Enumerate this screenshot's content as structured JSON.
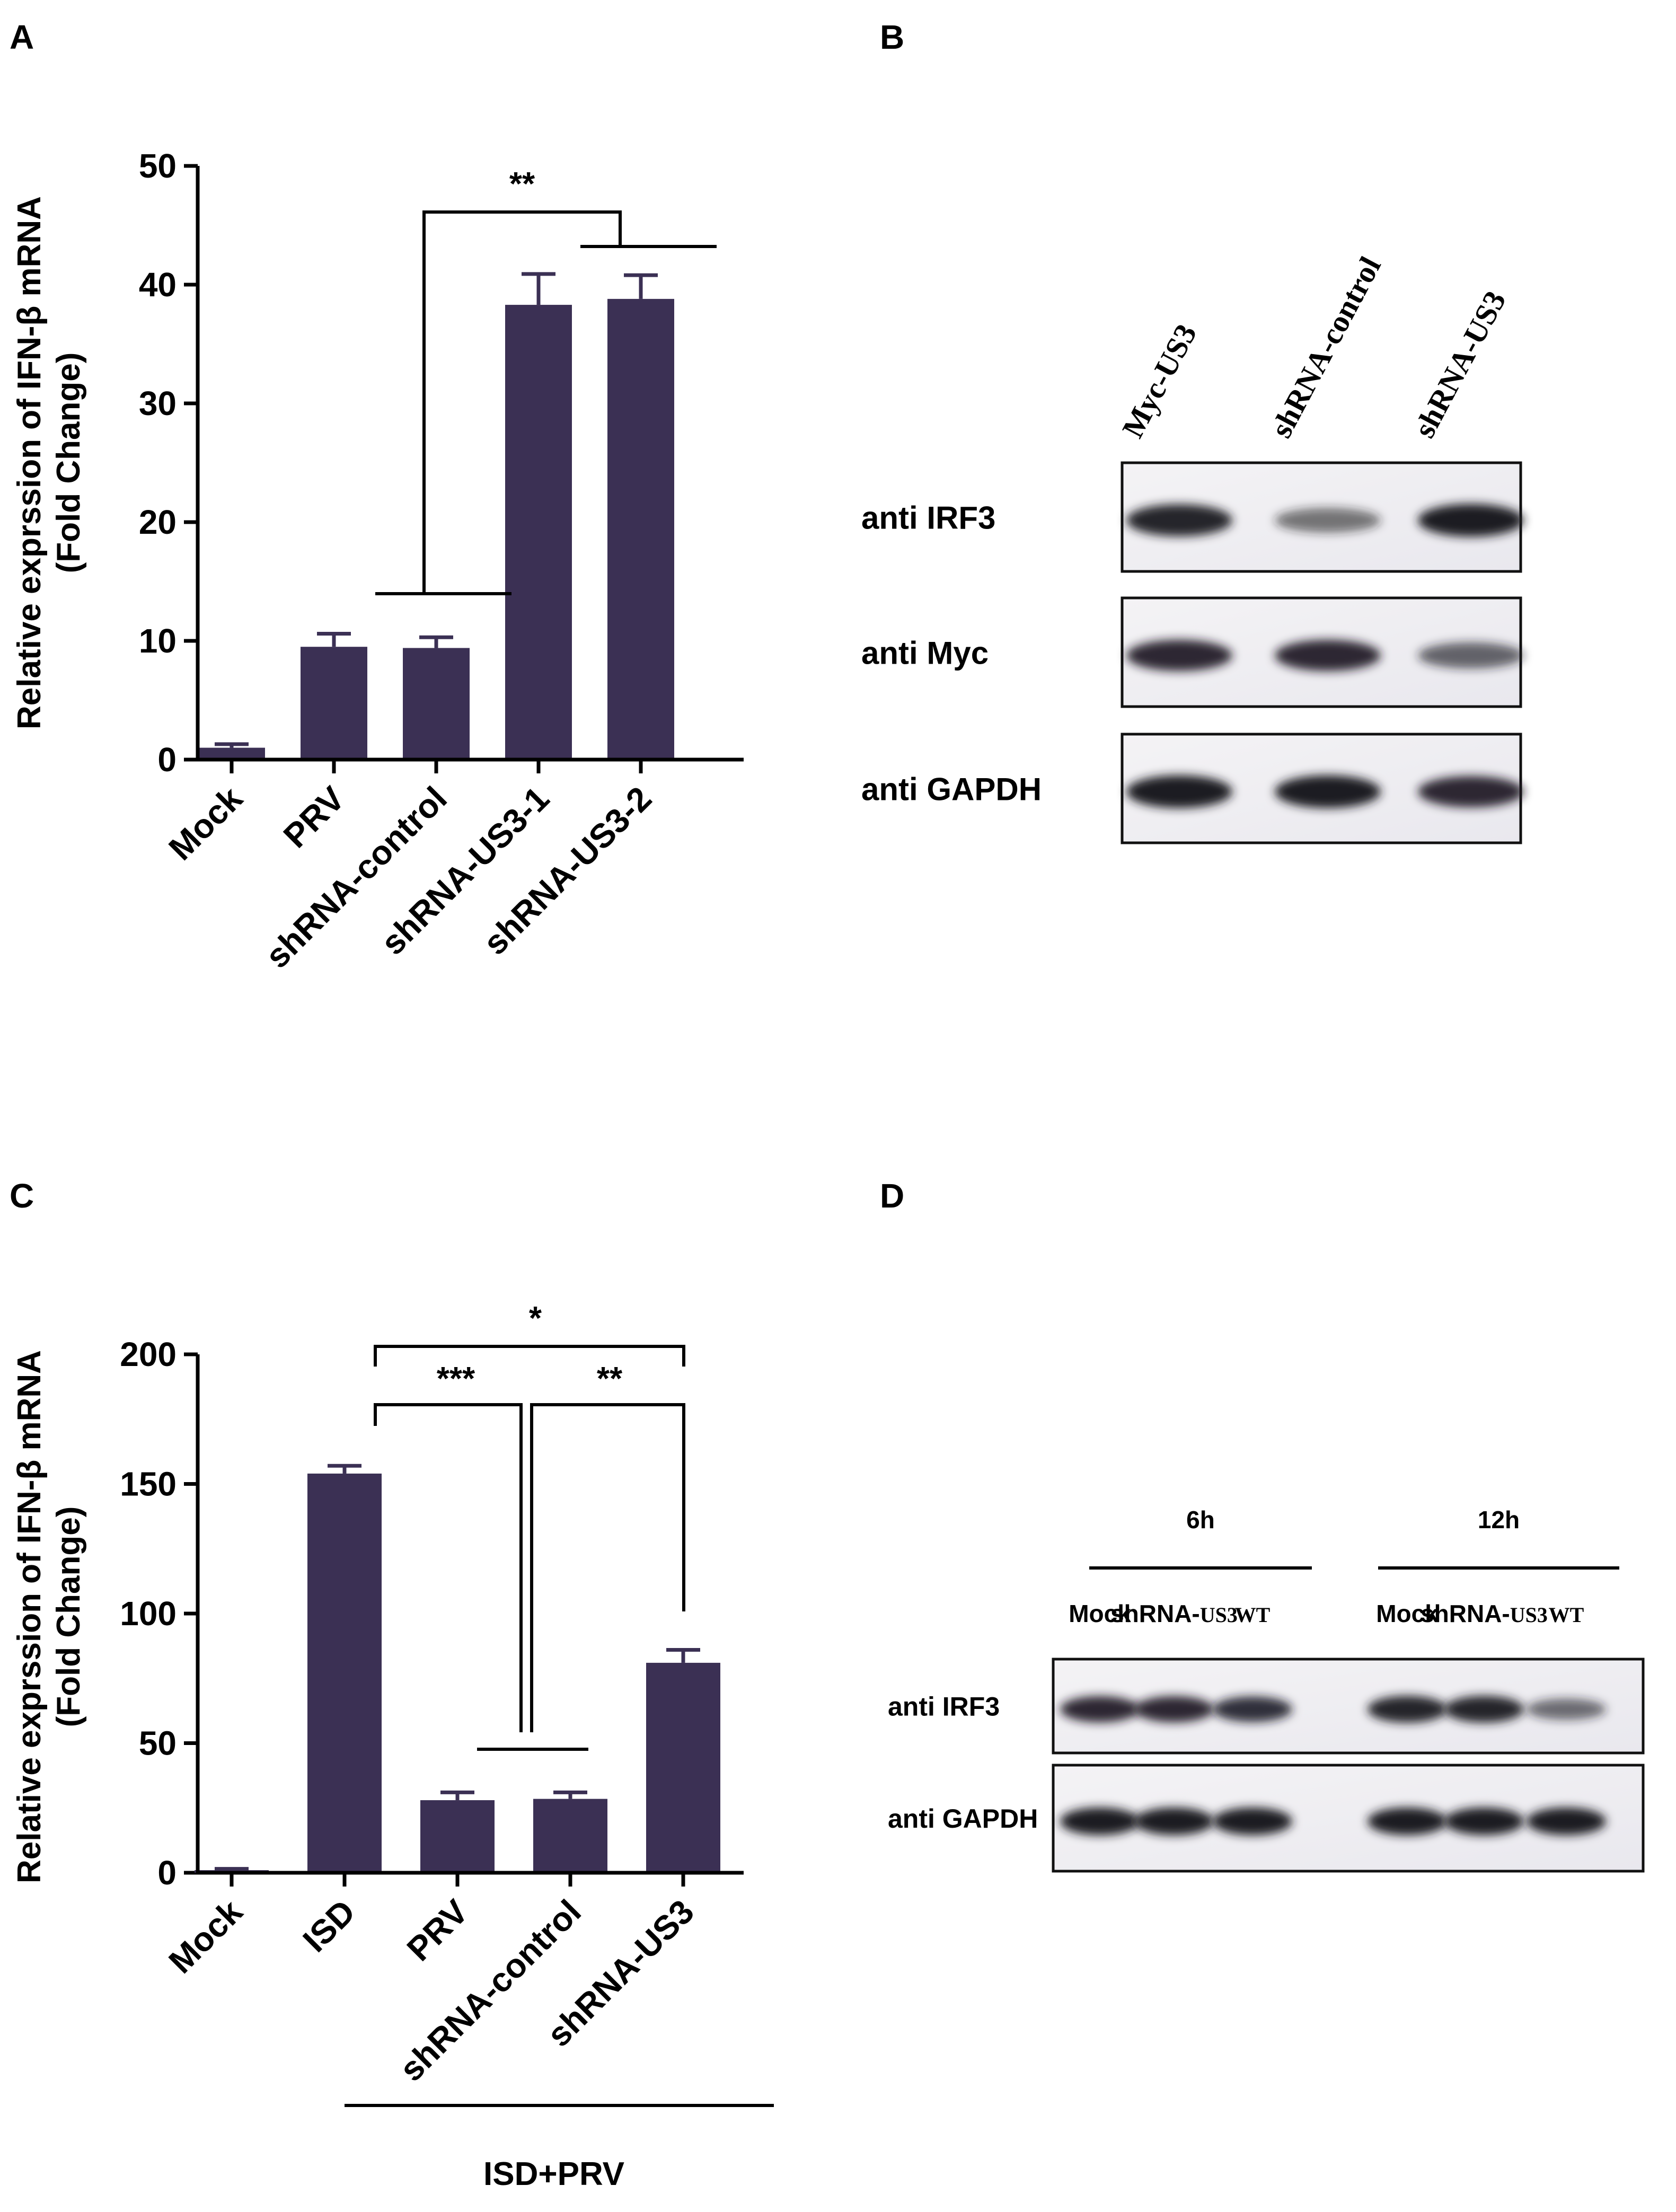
{
  "panels": {
    "A": {
      "letter": "A",
      "chart_data": {
        "type": "bar",
        "categories": [
          "Mock",
          "PRV",
          "shRNA-control",
          "shRNA-US3-1",
          "shRNA-US3-2"
        ],
        "values": [
          1,
          9.5,
          9.4,
          38.3,
          38.8
        ],
        "errors": [
          0.3,
          1.1,
          0.9,
          2.6,
          2.0
        ],
        "ylabel_line1": "Relative exprssion of IFN-β mRNA",
        "ylabel_line2": "(Fold Change)",
        "ylim": [
          0,
          50
        ],
        "yticks": [
          "0",
          "10",
          "20",
          "30",
          "40",
          "50"
        ],
        "bar_color": "#3b3054",
        "significance": [
          {
            "label": "**"
          }
        ]
      }
    },
    "B": {
      "letter": "B",
      "lanes": [
        "Myc-US3",
        "shRNA-control",
        "shRNA-US3"
      ],
      "blots": [
        {
          "label": "anti IRF3",
          "intensity": [
            0.95,
            0.45,
            1.0
          ]
        },
        {
          "label": "anti Myc",
          "intensity": [
            0.9,
            0.9,
            0.55
          ]
        },
        {
          "label": "anti GAPDH",
          "intensity": [
            1.0,
            1.0,
            0.9
          ]
        }
      ]
    },
    "C": {
      "letter": "C",
      "chart_data": {
        "type": "bar",
        "categories": [
          "Mock",
          "ISD",
          "PRV",
          "shRNA-control",
          "shRNA-US3"
        ],
        "values": [
          1,
          154,
          28,
          28.5,
          81
        ],
        "errors": [
          0.5,
          3,
          3,
          2.5,
          5
        ],
        "ylabel_line1": "Relative exprssion of IFN-β mRNA",
        "ylabel_line2": "(Fold Change)",
        "ylim": [
          0,
          200
        ],
        "yticks": [
          "0",
          "50",
          "100",
          "150",
          "200"
        ],
        "bar_color": "#3b3054",
        "significance": [
          {
            "label": "*"
          },
          {
            "label": "***"
          },
          {
            "label": "**"
          }
        ],
        "group_label": "ISD+PRV"
      }
    },
    "D": {
      "letter": "D",
      "time_groups": [
        "6h",
        "12h"
      ],
      "lanes": [
        {
          "prefix": "Mock",
          "suffix": ""
        },
        {
          "prefix": "shRNA-",
          "suffix": "US3"
        },
        {
          "prefix": "",
          "suffix": "WT"
        },
        {
          "prefix": "Mock",
          "suffix": ""
        },
        {
          "prefix": "shRNA-",
          "suffix": "US3"
        },
        {
          "prefix": "",
          "suffix": "WT"
        }
      ],
      "blots": [
        {
          "label": "anti IRF3",
          "intensity": [
            0.9,
            0.9,
            0.85,
            0.95,
            0.95,
            0.5
          ]
        },
        {
          "label": "anti GAPDH",
          "intensity": [
            1.0,
            1.0,
            1.0,
            1.0,
            1.0,
            1.0
          ]
        }
      ]
    }
  }
}
